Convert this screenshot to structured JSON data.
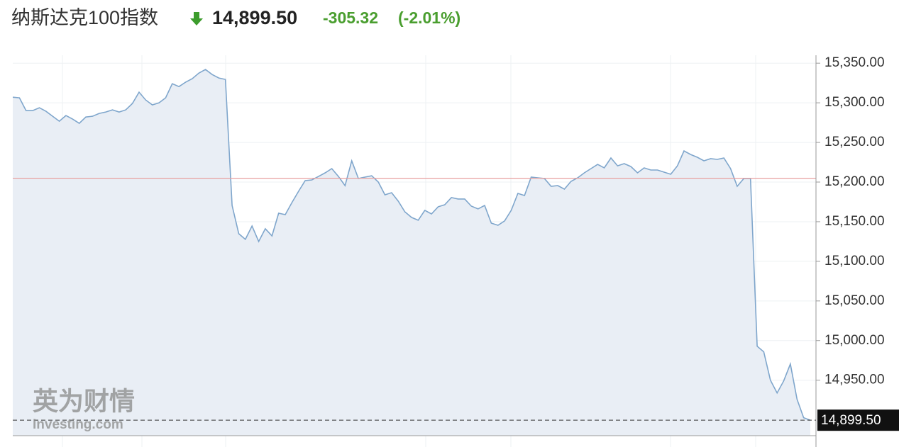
{
  "header": {
    "title": "纳斯达克100指数",
    "price": "14,899.50",
    "change": "-305.32",
    "change_percent": "(-2.01%)"
  },
  "chart_data": {
    "type": "area",
    "values": [
      15307.1,
      15306.3,
      15290.2,
      15290.2,
      15293.8,
      15289.3,
      15283.0,
      15276.8,
      15283.9,
      15279.5,
      15274.1,
      15282.1,
      15283.0,
      15286.6,
      15288.4,
      15291.1,
      15288.4,
      15291.1,
      15299.1,
      15313.4,
      15303.6,
      15297.3,
      15300.0,
      15306.3,
      15324.1,
      15320.5,
      15325.9,
      15330.4,
      15337.5,
      15342.0,
      15335.7,
      15331.3,
      15329.5,
      15170.5,
      15134.8,
      15127.7,
      15144.6,
      15125.0,
      15141.1,
      15132.1,
      15160.7,
      15158.9,
      15174.1,
      15188.4,
      15201.8,
      15202.7,
      15207.1,
      15211.6,
      15217.0,
      15207.1,
      15195.5,
      15226.8,
      15204.5,
      15206.3,
      15208.0,
      15200.0,
      15183.9,
      15186.6,
      15175.9,
      15162.5,
      15155.4,
      15151.8,
      15164.3,
      15159.8,
      15168.8,
      15171.4,
      15180.4,
      15178.6,
      15178.6,
      15169.6,
      15166.1,
      15170.5,
      15148.2,
      15145.5,
      15150.9,
      15164.3,
      15185.7,
      15183.0,
      15206.3,
      15205.4,
      15204.5,
      15194.6,
      15195.5,
      15191.1,
      15200.9,
      15205.4,
      15211.6,
      15217.0,
      15222.3,
      15217.9,
      15230.4,
      15220.5,
      15223.2,
      15219.6,
      15211.6,
      15217.9,
      15215.2,
      15215.2,
      15212.5,
      15209.8,
      15220.5,
      15239.3,
      15234.8,
      15231.3,
      15226.8,
      15229.5,
      15228.6,
      15230.4,
      15217.0,
      15194.6,
      15204.5,
      15204.5,
      14992.9,
      14985.7,
      14950.0,
      14933.9,
      14949.1,
      14970.5,
      14925.9,
      14902.7,
      14899.5
    ],
    "color": "#7fa6cc",
    "fill": "#e9eef5",
    "ylim": [
      14880,
      15360
    ],
    "yticks": [
      {
        "value": 14950,
        "label": "14,950.00"
      },
      {
        "value": 15000,
        "label": "15,000.00"
      },
      {
        "value": 15050,
        "label": "15,050.00"
      },
      {
        "value": 15100,
        "label": "15,100.00"
      },
      {
        "value": 15150,
        "label": "15,150.00"
      },
      {
        "value": 15200,
        "label": "15,200.00"
      },
      {
        "value": 15250,
        "label": "15,250.00"
      },
      {
        "value": 15300,
        "label": "15,300.00"
      },
      {
        "value": 15350,
        "label": "15,350.00"
      }
    ],
    "reference_line": 15204.82,
    "reference_color": "#e8a0a0",
    "last_value": {
      "value": 14899.5,
      "label": "14,899.50"
    },
    "grid": true,
    "watermark": {
      "brand": "英为财情",
      "site": "Investing.com"
    }
  }
}
